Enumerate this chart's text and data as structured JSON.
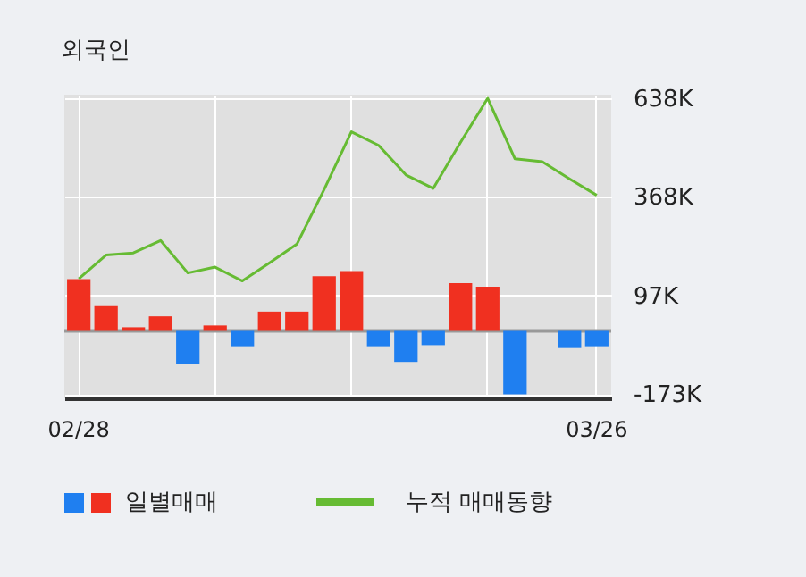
{
  "chart_data": {
    "type": "bar",
    "title": "외국인",
    "categories": [
      "02/28",
      null,
      null,
      null,
      null,
      null,
      null,
      null,
      null,
      null,
      null,
      null,
      null,
      null,
      null,
      null,
      null,
      null,
      null,
      "03/26"
    ],
    "series": [
      {
        "name": "일별매매",
        "colors": [
          "#f03020",
          "#f03020",
          "#f03020",
          "#f03020",
          "#1f7ff0",
          "#f03020",
          "#1f7ff0",
          "#f03020",
          "#f03020",
          "#f03020",
          "#f03020",
          "#1f7ff0",
          "#1f7ff0",
          "#1f7ff0",
          "#f03020",
          "#f03020",
          "#1f7ff0",
          "#f03020",
          "#1f7ff0",
          "#1f7ff0"
        ],
        "values": [
          142,
          68,
          10,
          40,
          -90,
          15,
          -42,
          53,
          53,
          150,
          164,
          -42,
          -85,
          -39,
          131,
          121,
          -174,
          0,
          -47,
          -42
        ]
      },
      {
        "name": "누적 매매동향",
        "type": "line",
        "color": "#66bb33",
        "values": [
          143,
          208,
          214,
          248,
          159,
          175,
          137,
          187,
          238,
          388,
          546,
          509,
          428,
          391,
          517,
          638,
          472,
          464,
          417,
          372
        ]
      }
    ],
    "ylim": [
      -185,
      648
    ],
    "yticks": [
      {
        "value": -173,
        "label": "-173K"
      },
      {
        "value": 97,
        "label": "97K"
      },
      {
        "value": 368,
        "label": "368K"
      },
      {
        "value": 638,
        "label": "638K"
      }
    ],
    "ref_lines": [
      {
        "axis": "y",
        "value": 0,
        "color": "#999999"
      }
    ],
    "grid": true,
    "legend": "bottom"
  }
}
